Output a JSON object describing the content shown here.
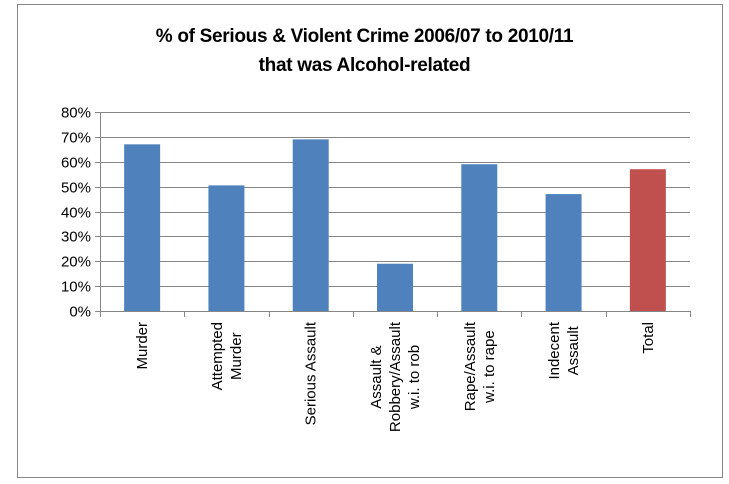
{
  "chart_data": {
    "type": "bar",
    "title_lines": [
      "% of Serious & Violent Crime 2006/07 to 2010/11",
      "that was Alcohol-related"
    ],
    "categories": [
      [
        "Murder"
      ],
      [
        "Attempted",
        "Murder"
      ],
      [
        "Serious Assault"
      ],
      [
        "Assault &",
        "Robbery/Assault",
        "w.i. to rob"
      ],
      [
        "Rape/Assault",
        "w.i. to rape"
      ],
      [
        "Indecent",
        "Assault"
      ],
      [
        "Total"
      ]
    ],
    "values": [
      67,
      50.5,
      69,
      19,
      59,
      47,
      57
    ],
    "bar_colors": [
      "#4f81bd",
      "#4f81bd",
      "#4f81bd",
      "#4f81bd",
      "#4f81bd",
      "#4f81bd",
      "#c0504d"
    ],
    "ylim": [
      0,
      80
    ],
    "y_ticks": [
      "0%",
      "10%",
      "20%",
      "30%",
      "40%",
      "50%",
      "60%",
      "70%",
      "80%"
    ],
    "grid": true,
    "xlabel": "",
    "ylabel": ""
  }
}
